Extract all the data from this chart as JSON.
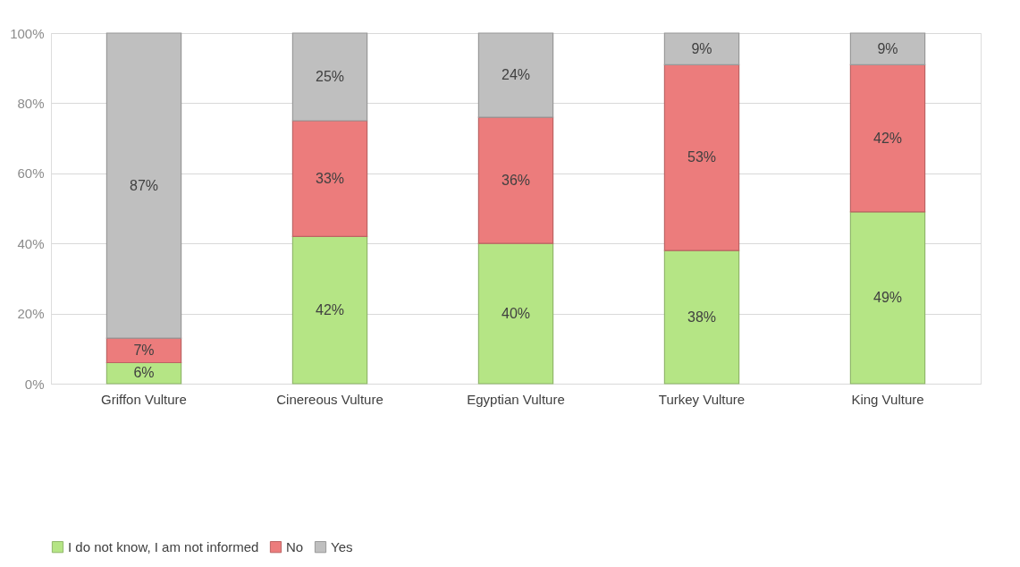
{
  "chart_data": {
    "type": "bar",
    "stacked": true,
    "categories": [
      "Griffon Vulture",
      "Cinereous Vulture",
      "Egyptian Vulture",
      "Turkey Vulture",
      "King Vulture"
    ],
    "series": [
      {
        "name": "I do not know, I am not informed",
        "color": "#b5e585",
        "values": [
          6,
          42,
          40,
          38,
          49
        ],
        "value_labels": [
          "6%",
          "42%",
          "40%",
          "38%",
          "49%"
        ]
      },
      {
        "name": "No",
        "color": "#ec7c7c",
        "values": [
          7,
          33,
          36,
          53,
          42
        ],
        "value_labels": [
          "7%",
          "33%",
          "36%",
          "53%",
          "42%"
        ]
      },
      {
        "name": "Yes",
        "color": "#bfbfbf",
        "values": [
          87,
          25,
          24,
          9,
          9
        ],
        "value_labels": [
          "87%",
          "25%",
          "24%",
          "9%",
          "9%"
        ]
      }
    ],
    "ylim": [
      0,
      100
    ],
    "yticks": [
      {
        "value": 0,
        "label": "0%"
      },
      {
        "value": 20,
        "label": "20%"
      },
      {
        "value": 40,
        "label": "40%"
      },
      {
        "value": 60,
        "label": "60%"
      },
      {
        "value": 80,
        "label": "80%"
      },
      {
        "value": 100,
        "label": "100%"
      }
    ],
    "grid": "y",
    "legend": "bottom"
  }
}
